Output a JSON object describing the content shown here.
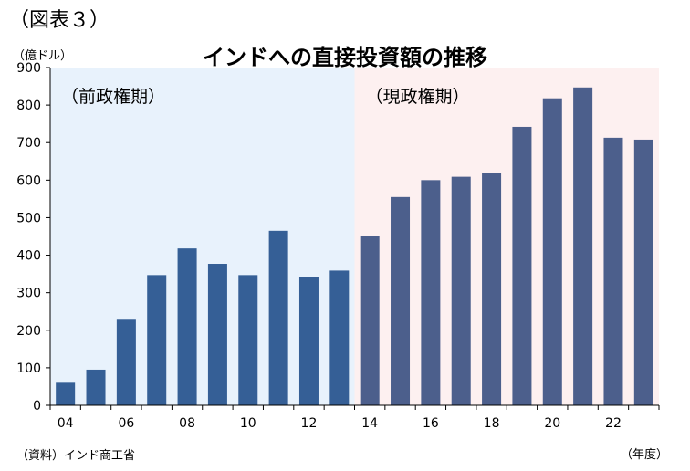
{
  "figure_label": "（図表３）",
  "source": "（資料）インド商工省",
  "y_unit": "（億ドル）",
  "x_unit": "（年度）",
  "chart_data": {
    "type": "bar",
    "title": "インドへの直接投資額の推移",
    "categories": [
      "04",
      "05",
      "06",
      "07",
      "08",
      "09",
      "10",
      "11",
      "12",
      "13",
      "14",
      "15",
      "16",
      "17",
      "18",
      "19",
      "20",
      "21",
      "22",
      "23"
    ],
    "x_tick_labels": [
      "04",
      "06",
      "08",
      "10",
      "12",
      "14",
      "16",
      "18",
      "20",
      "22"
    ],
    "values": [
      60,
      95,
      228,
      347,
      418,
      377,
      347,
      465,
      342,
      359,
      450,
      555,
      600,
      609,
      618,
      742,
      818,
      847,
      713,
      708
    ],
    "ylim": [
      0,
      900
    ],
    "yticks": [
      0,
      100,
      200,
      300,
      400,
      500,
      600,
      700,
      800,
      900
    ],
    "grid": false,
    "periods": [
      {
        "label": "（前政権期）",
        "from": "04",
        "to": "13",
        "background": "#e8f2fc",
        "bar_color": "#355f96"
      },
      {
        "label": "（現政権期）",
        "from": "14",
        "to": "23",
        "background": "#fdf0f0",
        "bar_color": "#4c5f8c"
      }
    ]
  }
}
